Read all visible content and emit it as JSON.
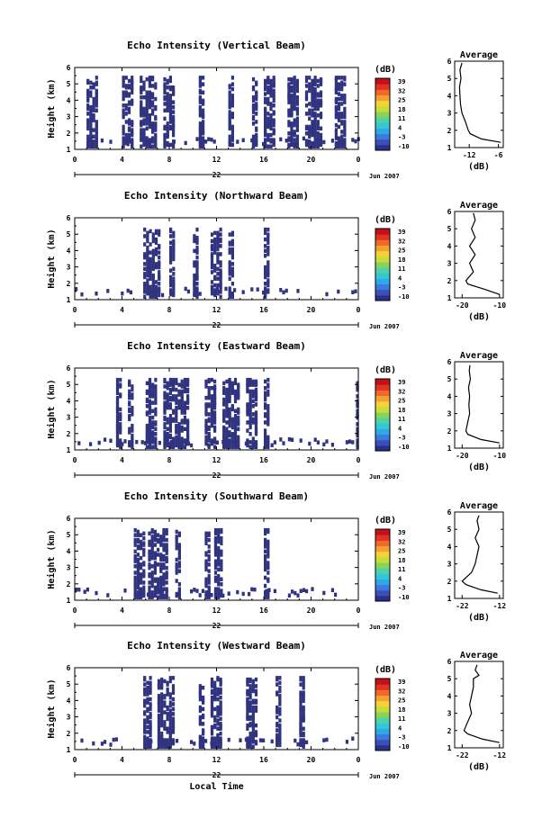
{
  "colormap": [
    "#2a2f8a",
    "#3a4fb8",
    "#3c7bdc",
    "#2fa8e8",
    "#35c7d6",
    "#4fd3a6",
    "#8ad35a",
    "#c9dc3a",
    "#f6d23a",
    "#f5a032",
    "#ef6a2a",
    "#e03324",
    "#c4101a"
  ],
  "ink_color": "#000000",
  "echo_color": "#30337f",
  "chart_data": [
    {
      "type": "heatmap",
      "title": "Echo Intensity (Vertical Beam)",
      "ylabel": "Height (km)",
      "xticks": [
        "0",
        "4",
        "8",
        "12",
        "16",
        "20",
        "0"
      ],
      "ylim": [
        1,
        6
      ],
      "yticks": [
        "1",
        "2",
        "3",
        "4",
        "5",
        "6"
      ],
      "date_center": "22",
      "date_right": "Jun 2007",
      "colorbar": {
        "unit": "(dB)",
        "labels": [
          "39",
          "32",
          "25",
          "18",
          "11",
          "4",
          "-3",
          "-10"
        ]
      },
      "echo_time_ranges_hours": [
        [
          1,
          2
        ],
        [
          4,
          5
        ],
        [
          5.5,
          7
        ],
        [
          7.5,
          8.5
        ],
        [
          10.5,
          11
        ],
        [
          13,
          13.5
        ],
        [
          15,
          15.5
        ],
        [
          16,
          17
        ],
        [
          18,
          19
        ],
        [
          19.5,
          21
        ],
        [
          22,
          23
        ]
      ],
      "echo_height_range_km": [
        1.2,
        5.4
      ],
      "average": {
        "title": "Average",
        "xlabel": "(dB)",
        "xticks": [
          "-12",
          "-6"
        ],
        "xlim": [
          -15,
          -5
        ],
        "yticks": [
          "1",
          "2",
          "3",
          "4",
          "5",
          "6"
        ],
        "heights_km": [
          1.3,
          1.5,
          1.8,
          2.0,
          2.5,
          3.0,
          3.5,
          4.0,
          4.5,
          5.0,
          5.5,
          5.9
        ],
        "values_db": [
          -5.5,
          -9.5,
          -11.8,
          -12.2,
          -12.8,
          -13.5,
          -13.8,
          -13.9,
          -14.0,
          -13.7,
          -13.9,
          -13.5
        ]
      }
    },
    {
      "type": "heatmap",
      "title": "Echo Intensity (Northward Beam)",
      "ylabel": "Height (km)",
      "xticks": [
        "0",
        "4",
        "8",
        "12",
        "16",
        "20",
        "0"
      ],
      "ylim": [
        1,
        6
      ],
      "yticks": [
        "1",
        "2",
        "3",
        "4",
        "5",
        "6"
      ],
      "date_center": "22",
      "date_right": "Jun 2007",
      "colorbar": {
        "unit": "(dB)",
        "labels": [
          "39",
          "32",
          "25",
          "18",
          "11",
          "4",
          "-3",
          "-10"
        ]
      },
      "echo_time_ranges_hours": [
        [
          5.8,
          7.2
        ],
        [
          8,
          8.5
        ],
        [
          10,
          10.5
        ],
        [
          11.5,
          12.5
        ],
        [
          13,
          13.5
        ],
        [
          16,
          16.5
        ]
      ],
      "echo_height_range_km": [
        1.2,
        5.3
      ],
      "average": {
        "title": "Average",
        "xlabel": "(dB)",
        "xticks": [
          "-20",
          "-10"
        ],
        "xlim": [
          -22,
          -9
        ],
        "yticks": [
          "1",
          "2",
          "3",
          "4",
          "5",
          "6"
        ],
        "heights_km": [
          1.2,
          1.5,
          1.8,
          2.0,
          2.5,
          3.0,
          3.5,
          4.0,
          4.5,
          5.0,
          5.5,
          5.9
        ],
        "values_db": [
          -10,
          -14,
          -18.5,
          -19,
          -17,
          -18,
          -16.5,
          -18,
          -16.5,
          -17.5,
          -16.5,
          -17
        ]
      }
    },
    {
      "type": "heatmap",
      "title": "Echo Intensity (Eastward Beam)",
      "ylabel": "Height (km)",
      "xticks": [
        "0",
        "4",
        "8",
        "12",
        "16",
        "20",
        "0"
      ],
      "ylim": [
        1,
        6
      ],
      "yticks": [
        "1",
        "2",
        "3",
        "4",
        "5",
        "6"
      ],
      "date_center": "22",
      "date_right": "Jun 2007",
      "colorbar": {
        "unit": "(dB)",
        "labels": [
          "39",
          "32",
          "25",
          "18",
          "11",
          "4",
          "-3",
          "-10"
        ]
      },
      "echo_time_ranges_hours": [
        [
          3.5,
          4
        ],
        [
          4.5,
          5
        ],
        [
          6,
          7
        ],
        [
          7.5,
          9.5
        ],
        [
          11,
          12
        ],
        [
          12.5,
          14
        ],
        [
          14.5,
          15.5
        ],
        [
          16,
          16.5
        ],
        [
          23.8,
          24
        ]
      ],
      "echo_height_range_km": [
        1.2,
        5.3
      ],
      "average": {
        "title": "Average",
        "xlabel": "(dB)",
        "xticks": [
          "-20",
          "-10"
        ],
        "xlim": [
          -22,
          -9
        ],
        "yticks": [
          "1",
          "2",
          "3",
          "4",
          "5",
          "6"
        ],
        "heights_km": [
          1.3,
          1.5,
          1.8,
          2.0,
          2.5,
          3.0,
          3.5,
          4.0,
          4.5,
          5.0,
          5.5,
          5.8
        ],
        "values_db": [
          -10,
          -15,
          -18.5,
          -19,
          -18.5,
          -18,
          -18.2,
          -18,
          -18.3,
          -17.8,
          -18.1,
          -17.9
        ]
      }
    },
    {
      "type": "heatmap",
      "title": "Echo Intensity (Southward Beam)",
      "ylabel": "Height (km)",
      "xticks": [
        "0",
        "4",
        "8",
        "12",
        "16",
        "20",
        "0"
      ],
      "ylim": [
        1,
        6
      ],
      "yticks": [
        "1",
        "2",
        "3",
        "4",
        "5",
        "6"
      ],
      "date_center": "22",
      "date_right": "Jun 2007",
      "colorbar": {
        "unit": "(dB)",
        "labels": [
          "39",
          "32",
          "25",
          "18",
          "11",
          "4",
          "-3",
          "-10"
        ]
      },
      "echo_time_ranges_hours": [
        [
          5,
          6
        ],
        [
          6.2,
          7.8
        ],
        [
          8.5,
          9
        ],
        [
          11,
          11.5
        ],
        [
          11.8,
          12.5
        ],
        [
          16,
          16.3
        ]
      ],
      "echo_height_range_km": [
        1.2,
        5.3
      ],
      "average": {
        "title": "Average",
        "xlabel": "(dB)",
        "xticks": [
          "-22",
          "-12"
        ],
        "xlim": [
          -24,
          -11
        ],
        "yticks": [
          "1",
          "2",
          "3",
          "4",
          "5",
          "6"
        ],
        "heights_km": [
          1.3,
          1.5,
          1.8,
          2.0,
          2.5,
          3.0,
          3.5,
          4.0,
          4.5,
          5.0,
          5.5,
          5.8
        ],
        "values_db": [
          -12.5,
          -17,
          -21,
          -22,
          -19.5,
          -18.5,
          -18,
          -17.5,
          -18.5,
          -17.5,
          -18,
          -17.5
        ]
      }
    },
    {
      "type": "heatmap",
      "title": "Echo Intensity (Westward Beam)",
      "ylabel": "Height (km)",
      "xlabel": "Local Time",
      "xticks": [
        "0",
        "4",
        "8",
        "12",
        "16",
        "20",
        "0"
      ],
      "ylim": [
        1,
        6
      ],
      "yticks": [
        "1",
        "2",
        "3",
        "4",
        "5",
        "6"
      ],
      "date_center": "22",
      "date_right": "Jun 2007",
      "colorbar": {
        "unit": "(dB)",
        "labels": [
          "39",
          "32",
          "25",
          "18",
          "11",
          "4",
          "-3",
          "-10"
        ]
      },
      "echo_time_ranges_hours": [
        [
          5.8,
          6.5
        ],
        [
          7,
          8.5
        ],
        [
          10.5,
          11
        ],
        [
          11.5,
          12.5
        ],
        [
          14.5,
          15.5
        ],
        [
          17,
          17.5
        ],
        [
          19,
          19.5
        ]
      ],
      "echo_height_range_km": [
        1.2,
        5.4
      ],
      "average": {
        "title": "Average",
        "xlabel": "(dB)",
        "xticks": [
          "-22",
          "-12"
        ],
        "xlim": [
          -24,
          -11
        ],
        "yticks": [
          "1",
          "2",
          "3",
          "4",
          "5",
          "6"
        ],
        "heights_km": [
          1.3,
          1.5,
          1.8,
          2.0,
          2.5,
          3.0,
          3.5,
          4.0,
          4.5,
          5.0,
          5.2,
          5.5,
          5.8
        ],
        "values_db": [
          -12,
          -16.5,
          -20.5,
          -21.5,
          -20.5,
          -19.5,
          -20,
          -19.5,
          -19,
          -19,
          -17.5,
          -18.5,
          -18
        ]
      }
    }
  ]
}
